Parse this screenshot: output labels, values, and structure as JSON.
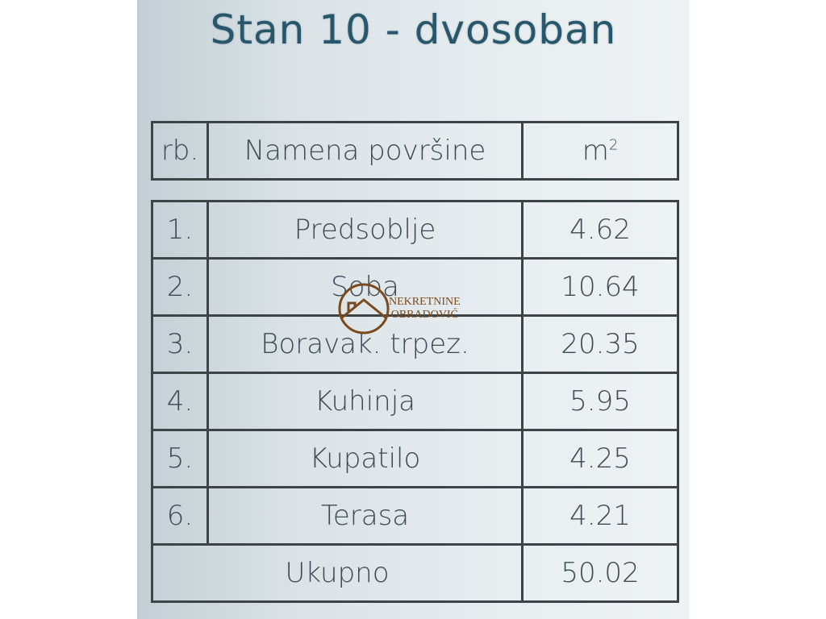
{
  "title": "Stan 10 - dvosoban",
  "header": {
    "col1": "rb.",
    "col2": "Namena površine",
    "col3_base": "m",
    "col3_sup": "2"
  },
  "rows": [
    {
      "num": "1.",
      "name": "Predsoblje",
      "area": "4.62"
    },
    {
      "num": "2.",
      "name": "Soba",
      "area": "10.64"
    },
    {
      "num": "3.",
      "name": "Boravak. trpez.",
      "area": "20.35"
    },
    {
      "num": "4.",
      "name": "Kuhinja",
      "area": "5.95"
    },
    {
      "num": "5.",
      "name": "Kupatilo",
      "area": "4.25"
    },
    {
      "num": "6.",
      "name": "Terasa",
      "area": "4.21"
    }
  ],
  "total": {
    "label": "Ukupno",
    "area": "50.02"
  },
  "watermark": {
    "line1": "NEKRETNINE",
    "line2": "OBRADOVIĆ",
    "color": "#7a4a1e"
  }
}
